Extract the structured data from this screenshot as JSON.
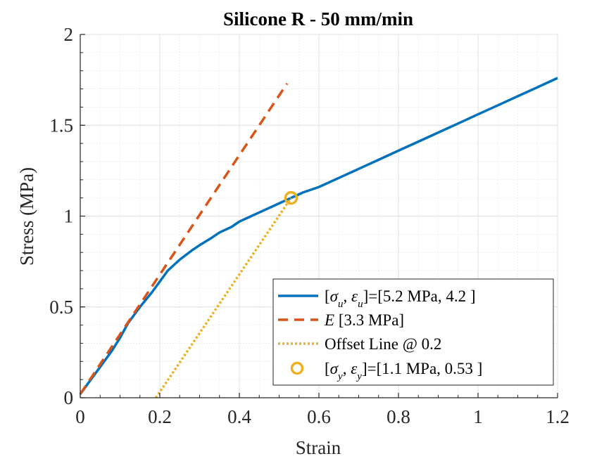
{
  "chart_data": {
    "type": "line",
    "title": "Silicone R - 50 mm/min",
    "xlabel": "Strain",
    "ylabel": "Stress (MPa)",
    "xlim": [
      0,
      1.2
    ],
    "ylim": [
      0,
      2
    ],
    "xticks": [
      0,
      0.2,
      0.4,
      0.6,
      0.8,
      1,
      1.2
    ],
    "xtick_labels": [
      "0",
      "0.2",
      "0.4",
      "0.6",
      "0.8",
      "1",
      "1.2"
    ],
    "yticks": [
      0,
      0.5,
      1,
      1.5,
      2
    ],
    "ytick_labels": [
      "0",
      "0.5",
      "1",
      "1.5",
      "2"
    ],
    "grid": true,
    "minor_grid": true,
    "legend_position": "bottom-right",
    "series": [
      {
        "name": "[σu, εu]=[5.2 MPa, 4.2 ]",
        "style": "solid",
        "color": "#0072BD",
        "x": [
          0,
          0.02,
          0.05,
          0.08,
          0.1,
          0.12,
          0.15,
          0.18,
          0.2,
          0.22,
          0.25,
          0.28,
          0.3,
          0.33,
          0.35,
          0.38,
          0.4,
          0.43,
          0.45,
          0.48,
          0.5,
          0.53,
          0.56,
          0.6,
          0.65,
          0.7,
          0.75,
          0.8,
          0.85,
          0.9,
          0.95,
          1.0,
          1.05,
          1.1,
          1.15,
          1.2
        ],
        "y": [
          0.02,
          0.08,
          0.17,
          0.26,
          0.33,
          0.41,
          0.5,
          0.58,
          0.64,
          0.7,
          0.76,
          0.81,
          0.84,
          0.88,
          0.91,
          0.94,
          0.97,
          1.0,
          1.02,
          1.05,
          1.07,
          1.1,
          1.13,
          1.16,
          1.21,
          1.26,
          1.31,
          1.36,
          1.41,
          1.46,
          1.51,
          1.56,
          1.61,
          1.66,
          1.71,
          1.76
        ]
      },
      {
        "name": "E [3.3 MPa]",
        "style": "dashed",
        "color": "#D95319",
        "x": [
          0,
          0.52
        ],
        "y": [
          0.02,
          1.73
        ]
      },
      {
        "name": "Offset Line @ 0.2",
        "style": "dotted",
        "color": "#EDB120",
        "x": [
          0.19,
          0.53
        ],
        "y": [
          0,
          1.1
        ]
      },
      {
        "name": "[σy, εy]=[1.1 MPa, 0.53 ]",
        "style": "marker",
        "color": "#EDB120",
        "x": [
          0.53
        ],
        "y": [
          1.1
        ]
      }
    ],
    "legend": [
      {
        "pre": "[",
        "a": "σ",
        "asub": "u",
        "mid": ", ",
        "b": "ε",
        "bsub": "u",
        "post": "]=[5.2 MPa, 4.2 ]"
      },
      {
        "pre": "",
        "a": "E",
        "asub": "",
        "mid": "",
        "b": "",
        "bsub": "",
        "post": " [3.3 MPa]"
      },
      {
        "pre": "Offset Line @ 0.2",
        "a": "",
        "asub": "",
        "mid": "",
        "b": "",
        "bsub": "",
        "post": ""
      },
      {
        "pre": "[",
        "a": "σ",
        "asub": "y",
        "mid": ", ",
        "b": "ε",
        "bsub": "y",
        "post": "]=[1.1 MPa, 0.53 ]"
      }
    ]
  }
}
